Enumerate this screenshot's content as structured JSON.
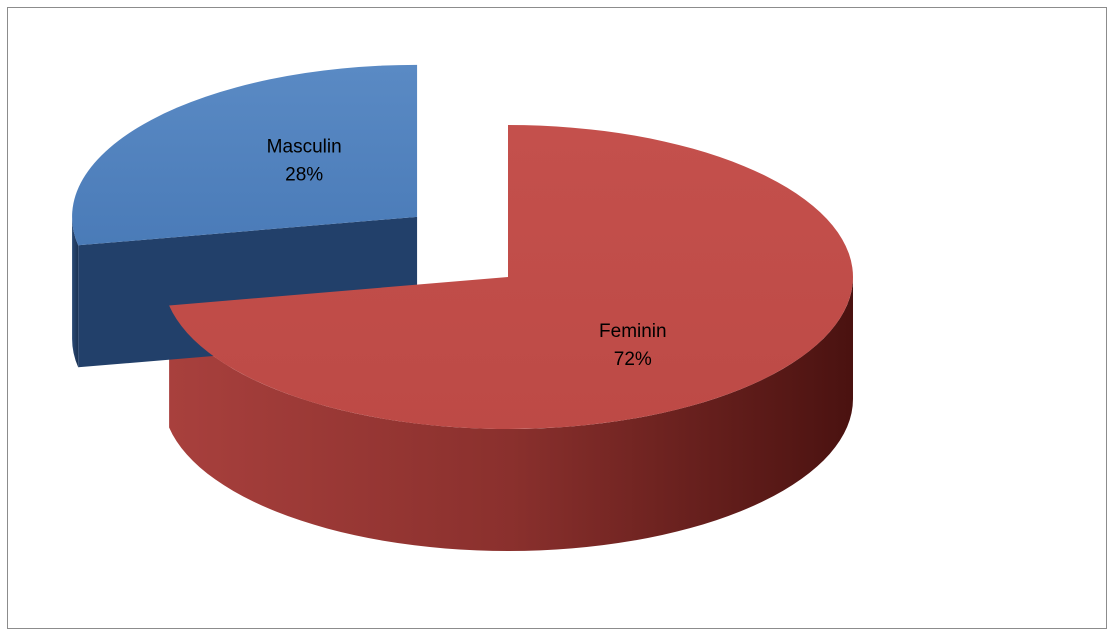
{
  "chart_data": {
    "type": "pie",
    "style": "3d-exploded",
    "title": "",
    "slices": [
      {
        "name": "Feminin",
        "value": 72,
        "label": "72%",
        "color": "#c0504d",
        "exploded": false
      },
      {
        "name": "Masculin",
        "value": 28,
        "label": "28%",
        "color": "#4f81bd",
        "exploded": true
      }
    ],
    "legend": "none"
  }
}
